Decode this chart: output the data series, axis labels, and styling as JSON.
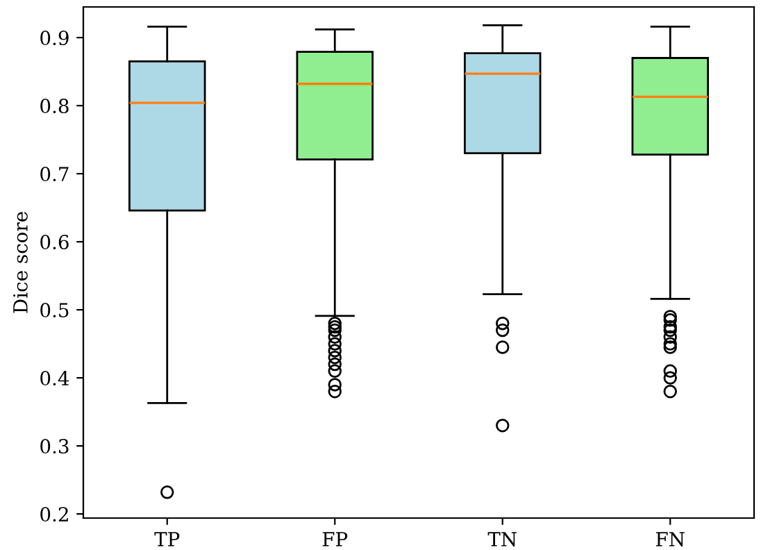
{
  "chart_data": {
    "type": "box",
    "ylabel": "Dice score",
    "categories": [
      "TP",
      "FP",
      "TN",
      "FN"
    ],
    "colors": [
      "#add8e6",
      "#90ee90",
      "#add8e6",
      "#90ee90"
    ],
    "boxes": [
      {
        "low": 0.363,
        "q1": 0.646,
        "median": 0.804,
        "q3": 0.865,
        "high": 0.916,
        "outliers": [
          0.232
        ]
      },
      {
        "low": 0.491,
        "q1": 0.721,
        "median": 0.832,
        "q3": 0.879,
        "high": 0.912,
        "outliers": [
          0.48,
          0.475,
          0.47,
          0.46,
          0.45,
          0.44,
          0.43,
          0.42,
          0.41,
          0.39,
          0.38
        ]
      },
      {
        "low": 0.523,
        "q1": 0.73,
        "median": 0.847,
        "q3": 0.877,
        "high": 0.918,
        "outliers": [
          0.48,
          0.47,
          0.445,
          0.33
        ]
      },
      {
        "low": 0.516,
        "q1": 0.728,
        "median": 0.813,
        "q3": 0.87,
        "high": 0.916,
        "outliers": [
          0.49,
          0.485,
          0.475,
          0.47,
          0.46,
          0.45,
          0.445,
          0.41,
          0.4,
          0.38
        ]
      }
    ],
    "ylim": [
      0.194,
      0.945
    ],
    "yticks": [
      0.2,
      0.3,
      0.4,
      0.5,
      0.6,
      0.7,
      0.8,
      0.9
    ],
    "grid": false
  }
}
